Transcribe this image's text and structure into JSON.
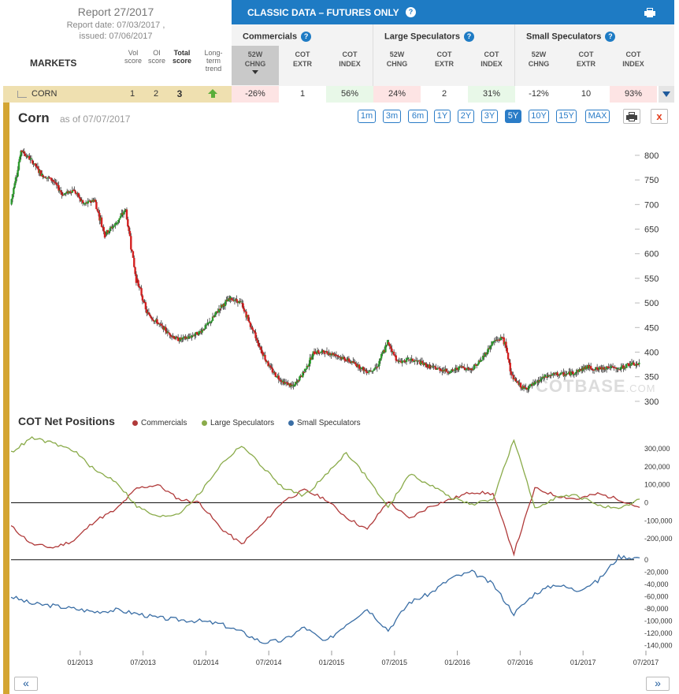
{
  "report": {
    "title": "Report 27/2017",
    "report_date": "Report date: 07/03/2017 ,",
    "issued": "issued: 07/06/2017"
  },
  "table_header": {
    "markets": "MARKETS",
    "vol_score": [
      "Vol",
      "score"
    ],
    "oi_score": [
      "OI",
      "score"
    ],
    "total_score": [
      "Total",
      "score"
    ],
    "long_term_trend": [
      "Long-",
      "term",
      "trend"
    ],
    "classic_title": "CLASSIC DATA – FUTURES ONLY",
    "groups": [
      "Commercials",
      "Large Speculators",
      "Small Speculators"
    ],
    "columns": [
      [
        "52W",
        "CHNG"
      ],
      [
        "COT",
        "EXTR"
      ],
      [
        "COT",
        "INDEX"
      ],
      [
        "52W",
        "CHNG"
      ],
      [
        "COT",
        "EXTR"
      ],
      [
        "COT",
        "INDEX"
      ],
      [
        "52W",
        "CHNG"
      ],
      [
        "COT",
        "EXTR"
      ],
      [
        "COT",
        "INDEX"
      ]
    ]
  },
  "row": {
    "market": "CORN",
    "vol_score": "1",
    "oi_score": "2",
    "total_score": "3",
    "trend": "up",
    "values": [
      "-26%",
      "1",
      "56%",
      "24%",
      "2",
      "31%",
      "-12%",
      "10",
      "93%"
    ],
    "cell_colors": [
      "#fde4e4",
      "#ffffff",
      "#e8f8e8",
      "#fde4e4",
      "#ffffff",
      "#e8f8e8",
      "#ffffff",
      "#ffffff",
      "#fde4e4"
    ]
  },
  "chart_header": {
    "title": "Corn",
    "as_of": "as of 07/07/2017",
    "ranges": [
      "1m",
      "3m",
      "6m",
      "1Y",
      "2Y",
      "3Y",
      "5Y",
      "10Y",
      "15Y",
      "MAX"
    ],
    "active_range": "5Y",
    "close_label": "x"
  },
  "watermark": {
    "main": "COTBASE",
    "suffix": ".COM"
  },
  "cot_header": {
    "title": "COT Net Positions",
    "legend": [
      "Commercials",
      "Large Speculators",
      "Small Speculators"
    ]
  },
  "nav": {
    "prev": "«",
    "next": "»"
  },
  "colors": {
    "commercials": "#b03a3a",
    "large_specs": "#8aab4a",
    "small_specs": "#3a6ea5",
    "candle_up": "#2e9e2e",
    "candle_down": "#d42020",
    "accent": "#1e7bc4",
    "gold": "#d4a532"
  },
  "chart_data": [
    {
      "type": "candlestick",
      "title": "Corn",
      "x_ticks": [
        "01/2013",
        "07/2013",
        "01/2014",
        "07/2014",
        "01/2015",
        "07/2015",
        "01/2016",
        "07/2016",
        "01/2017",
        "07/2017"
      ],
      "x_range": [
        "2012-07",
        "2017-07"
      ],
      "ylim": [
        295,
        840
      ],
      "y_ticks": [
        300,
        350,
        400,
        450,
        500,
        550,
        600,
        650,
        700,
        750,
        800
      ],
      "series": [
        {
          "name": "",
          "x": [
            "2012-07",
            "2012-08",
            "2012-09",
            "2012-10",
            "2012-11",
            "2012-12",
            "2013-01",
            "2013-02",
            "2013-03",
            "2013-04",
            "2013-05",
            "2013-06",
            "2013-07",
            "2013-08",
            "2013-09",
            "2013-10",
            "2013-11",
            "2013-12",
            "2014-01",
            "2014-02",
            "2014-03",
            "2014-04",
            "2014-05",
            "2014-06",
            "2014-07",
            "2014-08",
            "2014-09",
            "2014-10",
            "2014-11",
            "2014-12",
            "2015-01",
            "2015-02",
            "2015-03",
            "2015-04",
            "2015-05",
            "2015-06",
            "2015-07",
            "2015-08",
            "2015-09",
            "2015-10",
            "2015-11",
            "2015-12",
            "2016-01",
            "2016-02",
            "2016-03",
            "2016-04",
            "2016-05",
            "2016-06",
            "2016-07",
            "2016-08",
            "2016-09",
            "2016-10",
            "2016-11",
            "2016-12",
            "2017-01",
            "2017-02",
            "2017-03",
            "2017-04",
            "2017-05",
            "2017-06",
            "2017-07"
          ],
          "values": [
            700,
            810,
            790,
            760,
            750,
            720,
            730,
            700,
            710,
            640,
            660,
            690,
            550,
            480,
            460,
            440,
            425,
            430,
            440,
            460,
            490,
            510,
            500,
            450,
            400,
            360,
            340,
            330,
            360,
            400,
            400,
            395,
            385,
            375,
            360,
            370,
            420,
            380,
            385,
            380,
            370,
            365,
            360,
            370,
            365,
            385,
            420,
            430,
            345,
            325,
            335,
            350,
            355,
            355,
            360,
            370,
            365,
            370,
            365,
            375,
            375
          ]
        }
      ]
    },
    {
      "type": "line",
      "title": "COT Net Positions",
      "x_ticks": [
        "01/2013",
        "07/2013",
        "01/2014",
        "07/2014",
        "01/2015",
        "07/2015",
        "01/2016",
        "07/2016",
        "01/2017",
        "07/2017"
      ],
      "x_range": [
        "2012-07",
        "2017-07"
      ],
      "ylim": [
        -230000,
        370000
      ],
      "y_ticks": [
        -200000,
        -100000,
        0,
        100000,
        200000,
        300000
      ],
      "x": [
        "2012-07",
        "2012-09",
        "2012-11",
        "2013-01",
        "2013-03",
        "2013-05",
        "2013-07",
        "2013-09",
        "2013-11",
        "2014-01",
        "2014-03",
        "2014-05",
        "2014-07",
        "2014-09",
        "2014-11",
        "2015-01",
        "2015-03",
        "2015-05",
        "2015-07",
        "2015-09",
        "2015-11",
        "2016-01",
        "2016-03",
        "2016-05",
        "2016-07",
        "2016-09",
        "2016-11",
        "2017-01",
        "2017-03",
        "2017-05",
        "2017-07"
      ],
      "series": [
        {
          "name": "Commercials",
          "values": [
            -130000,
            -230000,
            -250000,
            -210000,
            -100000,
            -40000,
            80000,
            100000,
            20000,
            0,
            -140000,
            -230000,
            -120000,
            10000,
            70000,
            20000,
            -80000,
            -150000,
            10000,
            -90000,
            -20000,
            20000,
            60000,
            50000,
            -280000,
            80000,
            40000,
            20000,
            50000,
            20000,
            -26000
          ]
        },
        {
          "name": "Large Speculators",
          "values": [
            280000,
            360000,
            330000,
            290000,
            180000,
            120000,
            -20000,
            -80000,
            -60000,
            50000,
            210000,
            320000,
            200000,
            80000,
            40000,
            150000,
            280000,
            140000,
            -30000,
            160000,
            100000,
            30000,
            -10000,
            20000,
            350000,
            -30000,
            30000,
            40000,
            -10000,
            -40000,
            20000
          ]
        }
      ]
    },
    {
      "type": "line",
      "title": "",
      "x_range": [
        "2012-07",
        "2017-07"
      ],
      "ylim": [
        -142000,
        10000
      ],
      "y_ticks": [
        -140000,
        -120000,
        -100000,
        -80000,
        -60000,
        -40000,
        -20000,
        0
      ],
      "x": [
        "2012-07",
        "2012-09",
        "2012-11",
        "2013-01",
        "2013-03",
        "2013-05",
        "2013-07",
        "2013-09",
        "2013-11",
        "2014-01",
        "2014-03",
        "2014-05",
        "2014-07",
        "2014-09",
        "2014-11",
        "2015-01",
        "2015-03",
        "2015-05",
        "2015-07",
        "2015-09",
        "2015-11",
        "2016-01",
        "2016-03",
        "2016-05",
        "2016-07",
        "2016-09",
        "2016-11",
        "2017-01",
        "2017-03",
        "2017-05",
        "2017-07"
      ],
      "series": [
        {
          "name": "Small Speculators",
          "values": [
            -60000,
            -72000,
            -75000,
            -80000,
            -85000,
            -82000,
            -88000,
            -95000,
            -98000,
            -100000,
            -105000,
            -118000,
            -135000,
            -132000,
            -110000,
            -135000,
            -105000,
            -80000,
            -115000,
            -70000,
            -55000,
            -30000,
            -20000,
            -40000,
            -88000,
            -55000,
            -40000,
            -50000,
            -35000,
            5000,
            3000
          ]
        }
      ]
    }
  ]
}
